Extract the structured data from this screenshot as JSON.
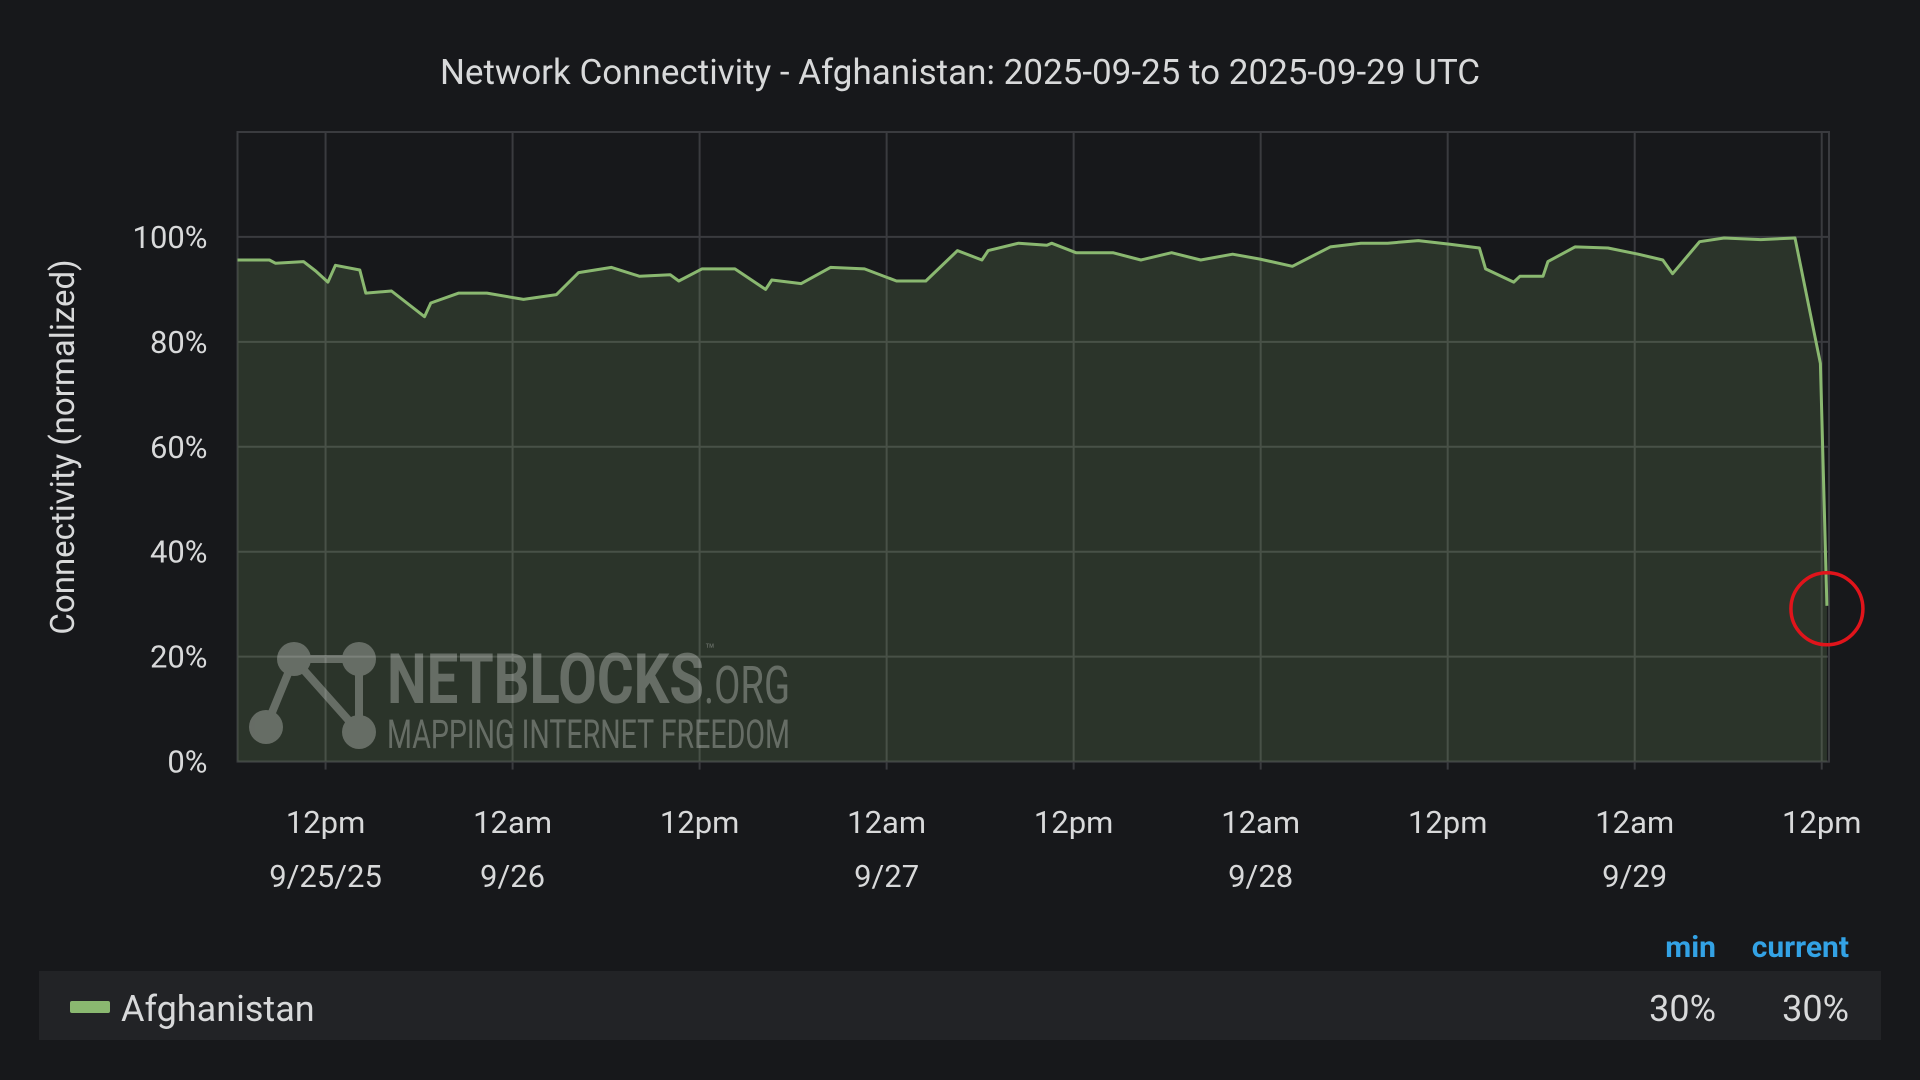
{
  "chart_data": {
    "type": "line",
    "title": "Network Connectivity - Afghanistan: 2025-09-25 to 2025-09-29 UTC",
    "y_label": "Connectivity (normalized)",
    "x": [
      "2025-09-25T06:21",
      "2025-09-25T08:24",
      "2025-09-25T08:47",
      "2025-09-25T10:35",
      "2025-09-25T11:22",
      "2025-09-25T12:09",
      "2025-09-25T12:38",
      "2025-09-25T14:12",
      "2025-09-25T14:35",
      "2025-09-25T16:14",
      "2025-09-25T18:21",
      "2025-09-25T18:45",
      "2025-09-25T20:33",
      "2025-09-25T22:21",
      "2025-09-26T00:42",
      "2025-09-26T02:49",
      "2025-09-26T04:14",
      "2025-09-26T06:21",
      "2025-09-26T08:09",
      "2025-09-26T10:07",
      "2025-09-26T10:40",
      "2025-09-26T12:09",
      "2025-09-26T14:16",
      "2025-09-26T16:14",
      "2025-09-26T16:38",
      "2025-09-26T18:31",
      "2025-09-26T20:24",
      "2025-09-26T22:35",
      "2025-09-27T00:38",
      "2025-09-27T02:31",
      "2025-09-27T03:55",
      "2025-09-27T04:33",
      "2025-09-27T06:07",
      "2025-09-27T06:31",
      "2025-09-27T08:28",
      "2025-09-27T10:17",
      "2025-09-27T10:35",
      "2025-09-27T12:09",
      "2025-09-27T14:31",
      "2025-09-27T16:19",
      "2025-09-27T18:17",
      "2025-09-27T20:09",
      "2025-09-27T22:12",
      "2025-09-27T23:55",
      "2025-09-28T02:02",
      "2025-09-28T04:28",
      "2025-09-28T06:26",
      "2025-09-28T08:09",
      "2025-09-28T10:07",
      "2025-09-28T12:09",
      "2025-09-28T14:02",
      "2025-09-28T14:26",
      "2025-09-28T16:14",
      "2025-09-28T16:38",
      "2025-09-28T18:07",
      "2025-09-28T18:26",
      "2025-09-28T20:10",
      "2025-09-28T22:17",
      "2025-09-29T00:14",
      "2025-09-29T01:48",
      "2025-09-29T02:26",
      "2025-09-29T04:10",
      "2025-09-29T05:44",
      "2025-09-29T08:05",
      "2025-09-29T10:17",
      "2025-09-29T11:55",
      "2025-09-29T12:20"
    ],
    "series": [
      {
        "name": "Afghanistan",
        "color": "#8ab870",
        "values": [
          95.6,
          95.6,
          95,
          95.3,
          93.5,
          91.4,
          94.6,
          93.7,
          89.3,
          89.7,
          84.8,
          87.4,
          89.3,
          89.3,
          88.1,
          89,
          93.2,
          94.2,
          92.5,
          92.8,
          91.6,
          93.9,
          93.9,
          90,
          91.8,
          91.1,
          94.2,
          93.9,
          91.6,
          91.6,
          95.6,
          97.4,
          95.6,
          97.4,
          98.8,
          98.4,
          98.8,
          97,
          97,
          95.6,
          97,
          95.6,
          96.7,
          95.8,
          94.4,
          98.1,
          98.8,
          98.8,
          99.3,
          98.6,
          97.9,
          93.9,
          91.4,
          92.5,
          92.5,
          95.3,
          98.1,
          97.9,
          96.7,
          95.6,
          93,
          99.1,
          99.8,
          99.5,
          99.8,
          75.9,
          29.7
        ]
      }
    ],
    "xlim": [
      "2025-09-25T06:21",
      "2025-09-29T12:28"
    ],
    "xticks": [
      {
        "value": "2025-09-25T12:00",
        "label": [
          "12pm",
          "9/25/25"
        ]
      },
      {
        "value": "2025-09-26T00:00",
        "label": [
          "12am",
          "9/26"
        ]
      },
      {
        "value": "2025-09-26T12:00",
        "label": [
          "12pm"
        ]
      },
      {
        "value": "2025-09-27T00:00",
        "label": [
          "12am",
          "9/27"
        ]
      },
      {
        "value": "2025-09-27T12:00",
        "label": [
          "12pm"
        ]
      },
      {
        "value": "2025-09-28T00:00",
        "label": [
          "12am",
          "9/28"
        ]
      },
      {
        "value": "2025-09-28T12:00",
        "label": [
          "12pm"
        ]
      },
      {
        "value": "2025-09-29T00:00",
        "label": [
          "12am",
          "9/29"
        ]
      },
      {
        "value": "2025-09-29T12:00",
        "label": [
          "12pm"
        ]
      }
    ],
    "ylim": [
      0,
      120
    ],
    "yticks": [
      {
        "value": 0,
        "label": "0%"
      },
      {
        "value": 20,
        "label": "20%"
      },
      {
        "value": 40,
        "label": "40%"
      },
      {
        "value": 60,
        "label": "60%"
      },
      {
        "value": 80,
        "label": "80%"
      },
      {
        "value": 100,
        "label": "100%"
      }
    ],
    "grid": true,
    "legend_stats": {
      "headers": [
        "min",
        "current"
      ],
      "values": [
        30,
        30
      ],
      "value_labels": [
        "30%",
        "30%"
      ]
    },
    "watermark": {
      "name": "NETBLOCKS",
      "tm": "™",
      "tld": ".ORG",
      "tagline": "MAPPING INTERNET FREEDOM"
    }
  }
}
